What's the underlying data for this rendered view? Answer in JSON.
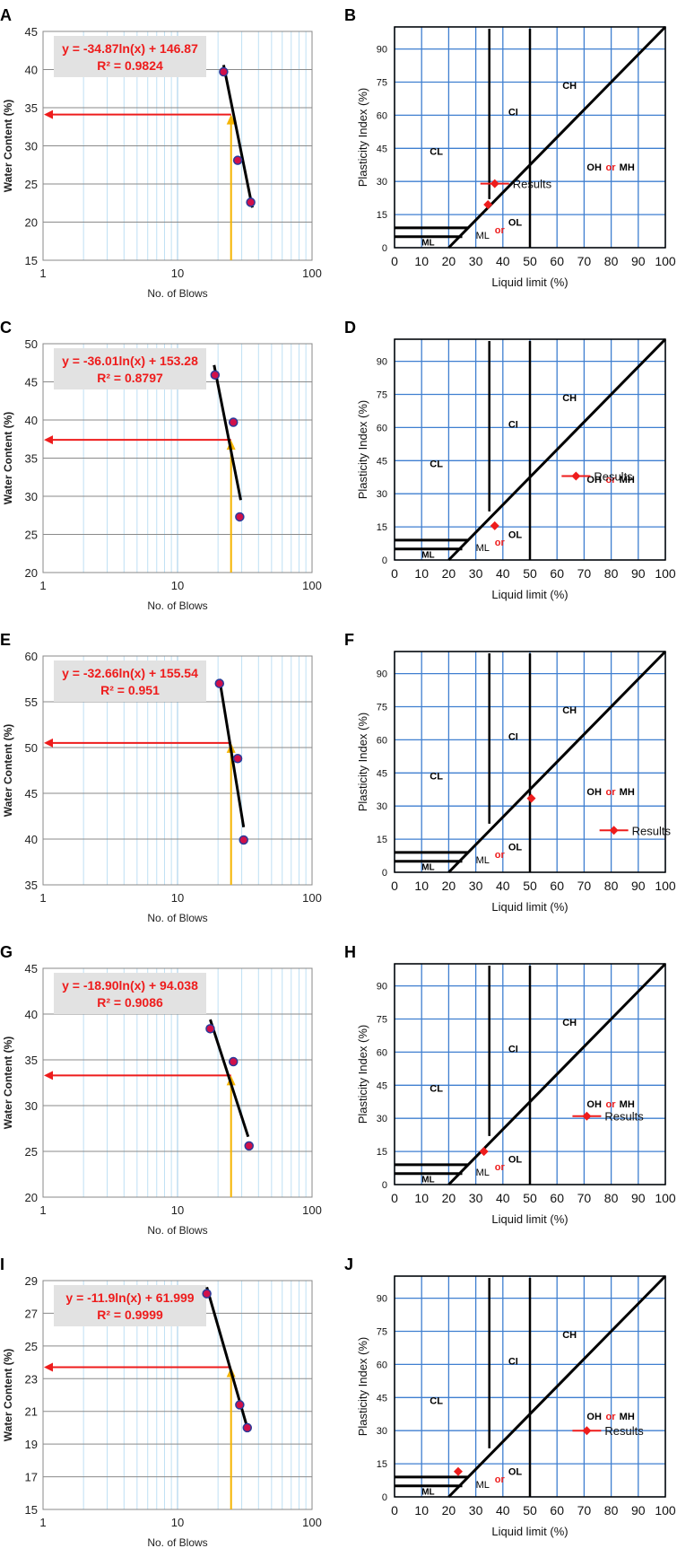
{
  "colors": {
    "red": "#ee1c1c",
    "orange": "#f5b400",
    "grid_light": "#bfe0f4",
    "grid_blue": "#3f7fd0",
    "marker_fill": "#d0104a",
    "marker_edge": "#2a3a9a",
    "box": "#e2e2e2"
  },
  "liquid_limit_plots": [
    {
      "panel": "A",
      "type": "scatter",
      "xscale": "log",
      "x": [
        22,
        28,
        35
      ],
      "y": [
        39.7,
        28.1,
        22.6
      ],
      "ylim": [
        15,
        45
      ],
      "yticks": [
        15,
        20,
        25,
        30,
        35,
        40,
        45
      ],
      "xticks": [
        1,
        10,
        100
      ],
      "xlabel": "No. of Blows",
      "ylabel": "Water Content (%)",
      "equation": "y = -34.87ln(x) + 146.87",
      "r2": "R² = 0.9824",
      "fit": [
        [
          22,
          40.6
        ],
        [
          36,
          21.9
        ]
      ],
      "wc25": 34.1
    },
    {
      "panel": "C",
      "type": "scatter",
      "xscale": "log",
      "x": [
        19,
        26,
        29
      ],
      "y": [
        45.9,
        39.7,
        27.3
      ],
      "ylim": [
        20,
        50
      ],
      "yticks": [
        20,
        25,
        30,
        35,
        40,
        45,
        50
      ],
      "xticks": [
        1,
        10,
        100
      ],
      "xlabel": "No. of Blows",
      "ylabel": "Water Content (%)",
      "equation": "y = -36.01ln(x) + 153.28",
      "r2": "R² = 0.8797",
      "fit": [
        [
          18.7,
          47.2
        ],
        [
          29.5,
          29.5
        ]
      ],
      "wc25": 37.4
    },
    {
      "panel": "E",
      "type": "scatter",
      "xscale": "log",
      "x": [
        20.5,
        28,
        31
      ],
      "y": [
        57,
        48.8,
        39.9
      ],
      "ylim": [
        35,
        60
      ],
      "yticks": [
        35,
        40,
        45,
        50,
        55,
        60
      ],
      "xticks": [
        1,
        10,
        100
      ],
      "xlabel": "No. of Blows",
      "ylabel": "Water Content (%)",
      "equation": "y = -32.66ln(x) + 155.54",
      "r2": "R² = 0.951",
      "fit": [
        [
          20.5,
          57.5
        ],
        [
          31,
          41.3
        ]
      ],
      "wc25": 50.5
    },
    {
      "panel": "G",
      "type": "scatter",
      "xscale": "log",
      "x": [
        17.5,
        26,
        34
      ],
      "y": [
        38.4,
        34.8,
        25.6
      ],
      "ylim": [
        20,
        45
      ],
      "yticks": [
        20,
        25,
        30,
        35,
        40,
        45
      ],
      "xticks": [
        1,
        10,
        100
      ],
      "xlabel": "No. of Blows",
      "ylabel": "Water Content (%)",
      "equation": "y = -18.90ln(x) + 94.038",
      "r2": "R² = 0.9086",
      "fit": [
        [
          17.5,
          39.4
        ],
        [
          33.5,
          26.6
        ]
      ],
      "wc25": 33.3
    },
    {
      "panel": "I",
      "type": "scatter",
      "xscale": "log",
      "x": [
        16.5,
        29,
        33
      ],
      "y": [
        28.2,
        21.4,
        20
      ],
      "ylim": [
        15,
        29
      ],
      "yticks": [
        15,
        17,
        19,
        21,
        23,
        25,
        27,
        29
      ],
      "xticks": [
        1,
        10,
        100
      ],
      "xlabel": "No. of Blows",
      "ylabel": "Water Content (%)",
      "equation": "y = -11.9ln(x) + 61.999",
      "r2": "R² = 0.9999",
      "fit": [
        [
          16.5,
          28.6
        ],
        [
          33,
          20
        ]
      ],
      "wc25": 23.7
    }
  ],
  "plasticity_charts": [
    {
      "panel": "B",
      "type": "scatter",
      "result_ll": 34.5,
      "result_pi": 19.5,
      "legend_center": [
        55,
        37
      ]
    },
    {
      "panel": "D",
      "type": "scatter",
      "result_ll": 37,
      "result_pi": 15.5,
      "legend_center": [
        73,
        67
      ]
    },
    {
      "panel": "F",
      "type": "scatter",
      "result_ll": 50.5,
      "result_pi": 33.5,
      "legend_center": [
        35,
        81
      ]
    },
    {
      "panel": "H",
      "type": "scatter",
      "result_ll": 33,
      "result_pi": 15,
      "legend_center": [
        59,
        71
      ]
    },
    {
      "panel": "J",
      "type": "scatter",
      "result_ll": 23.5,
      "result_pi": 11.5,
      "legend_center": [
        57,
        71
      ]
    }
  ],
  "plasticity_common": {
    "xlabel": "Liquid limit (%)",
    "ylabel": "Plasticity Index (%)",
    "xticks": [
      0,
      10,
      20,
      30,
      40,
      50,
      60,
      70,
      80,
      90,
      100
    ],
    "yticks": [
      0,
      15,
      30,
      45,
      60,
      75,
      90
    ],
    "legend": "Results",
    "zones": {
      "ch": "CH",
      "ci": "CI",
      "cl": "CL",
      "oh": "OH",
      "or": "or",
      "mh": "MH",
      "ol": "OL",
      "ml": "ML",
      "ml2": "ML",
      "or2": "or"
    }
  }
}
